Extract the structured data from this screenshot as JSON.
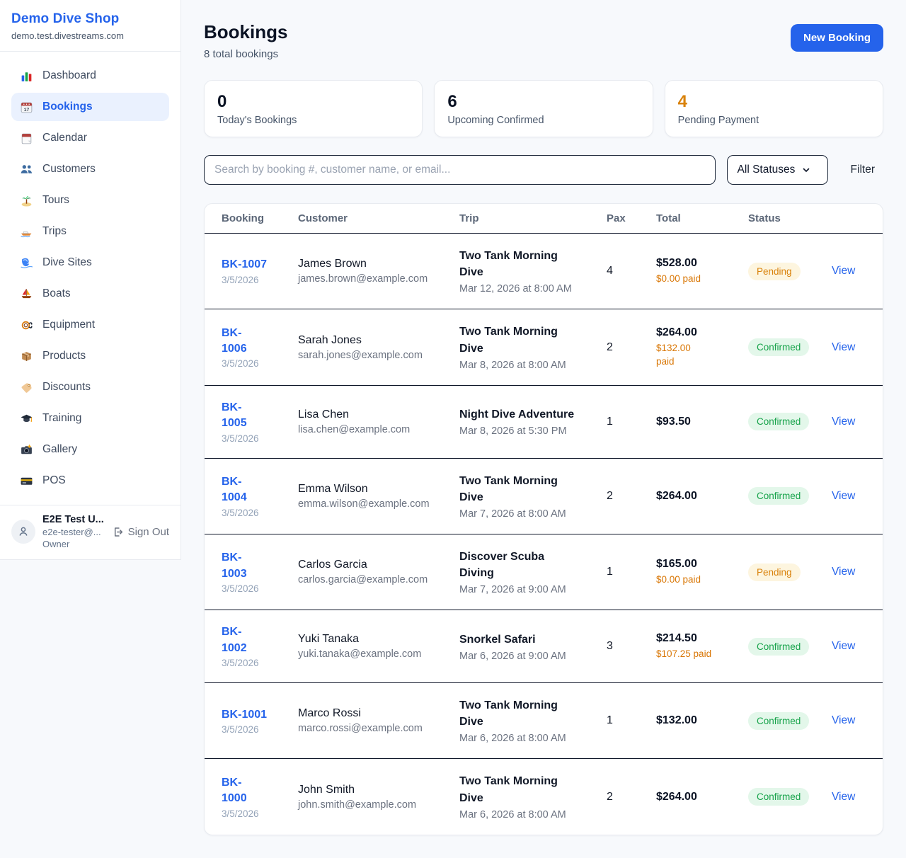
{
  "brand": {
    "name": "Demo Dive Shop",
    "domain": "demo.test.divestreams.com"
  },
  "sidebar": {
    "items": [
      {
        "label": "Dashboard",
        "icon": "bar-chart-icon",
        "active": false
      },
      {
        "label": "Bookings",
        "icon": "calendar-date-icon",
        "active": true
      },
      {
        "label": "Calendar",
        "icon": "calendar-icon",
        "active": false
      },
      {
        "label": "Customers",
        "icon": "users-icon",
        "active": false
      },
      {
        "label": "Tours",
        "icon": "island-icon",
        "active": false
      },
      {
        "label": "Trips",
        "icon": "speedboat-icon",
        "active": false
      },
      {
        "label": "Dive Sites",
        "icon": "wave-icon",
        "active": false
      },
      {
        "label": "Boats",
        "icon": "sailboat-icon",
        "active": false
      },
      {
        "label": "Equipment",
        "icon": "dive-mask-icon",
        "active": false
      },
      {
        "label": "Products",
        "icon": "package-icon",
        "active": false
      },
      {
        "label": "Discounts",
        "icon": "tag-icon",
        "active": false
      },
      {
        "label": "Training",
        "icon": "graduation-cap-icon",
        "active": false
      },
      {
        "label": "Gallery",
        "icon": "camera-icon",
        "active": false
      },
      {
        "label": "POS",
        "icon": "credit-card-icon",
        "active": false
      }
    ]
  },
  "user": {
    "name": "E2E Test U...",
    "email": "e2e-tester@...",
    "role": "Owner",
    "signout_label": "Sign Out"
  },
  "header": {
    "title": "Bookings",
    "subtitle": "8 total bookings",
    "new_booking_label": "New Booking"
  },
  "stats": [
    {
      "value": "0",
      "label": "Today's Bookings",
      "accent": null
    },
    {
      "value": "6",
      "label": "Upcoming Confirmed",
      "accent": null
    },
    {
      "value": "4",
      "label": "Pending Payment",
      "accent": "orange"
    }
  ],
  "filters": {
    "search_placeholder": "Search by booking #, customer name, or email...",
    "status_selected": "All Statuses",
    "filter_label": "Filter"
  },
  "table": {
    "columns": [
      "Booking",
      "Customer",
      "Trip",
      "Pax",
      "Total",
      "Status"
    ],
    "view_label": "View",
    "rows": [
      {
        "id": "BK-1007",
        "date": "3/5/2026",
        "customer": "James Brown",
        "email": "james.brown@example.com",
        "trip": "Two Tank Morning\nDive",
        "trip_date": "Mar 12, 2026 at 8:00 AM",
        "pax": "4",
        "total": "$528.00",
        "paid": "$0.00 paid",
        "status": "Pending"
      },
      {
        "id": "BK-\n1006",
        "date": "3/5/2026",
        "customer": "Sarah Jones",
        "email": "sarah.jones@example.com",
        "trip": "Two Tank Morning\nDive",
        "trip_date": "Mar 8, 2026 at 8:00 AM",
        "pax": "2",
        "total": "$264.00",
        "paid": "$132.00\npaid",
        "status": "Confirmed"
      },
      {
        "id": "BK-\n1005",
        "date": "3/5/2026",
        "customer": "Lisa Chen",
        "email": "lisa.chen@example.com",
        "trip": "Night Dive Adventure",
        "trip_date": "Mar 8, 2026 at 5:30 PM",
        "pax": "1",
        "total": "$93.50",
        "paid": null,
        "status": "Confirmed"
      },
      {
        "id": "BK-\n1004",
        "date": "3/5/2026",
        "customer": "Emma Wilson",
        "email": "emma.wilson@example.com",
        "trip": "Two Tank Morning\nDive",
        "trip_date": "Mar 7, 2026 at 8:00 AM",
        "pax": "2",
        "total": "$264.00",
        "paid": null,
        "status": "Confirmed"
      },
      {
        "id": "BK-\n1003",
        "date": "3/5/2026",
        "customer": "Carlos Garcia",
        "email": "carlos.garcia@example.com",
        "trip": "Discover Scuba\nDiving",
        "trip_date": "Mar 7, 2026 at 9:00 AM",
        "pax": "1",
        "total": "$165.00",
        "paid": "$0.00 paid",
        "status": "Pending"
      },
      {
        "id": "BK-\n1002",
        "date": "3/5/2026",
        "customer": "Yuki Tanaka",
        "email": "yuki.tanaka@example.com",
        "trip": "Snorkel Safari",
        "trip_date": "Mar 6, 2026 at 9:00 AM",
        "pax": "3",
        "total": "$214.50",
        "paid": "$107.25 paid",
        "status": "Confirmed"
      },
      {
        "id": "BK-1001",
        "date": "3/5/2026",
        "customer": "Marco Rossi",
        "email": "marco.rossi@example.com",
        "trip": "Two Tank Morning\nDive",
        "trip_date": "Mar 6, 2026 at 8:00 AM",
        "pax": "1",
        "total": "$132.00",
        "paid": null,
        "status": "Confirmed"
      },
      {
        "id": "BK-\n1000",
        "date": "3/5/2026",
        "customer": "John Smith",
        "email": "john.smith@example.com",
        "trip": "Two Tank Morning\nDive",
        "trip_date": "Mar 6, 2026 at 8:00 AM",
        "pax": "2",
        "total": "$264.00",
        "paid": null,
        "status": "Confirmed"
      }
    ]
  },
  "colors": {
    "accent_blue": "#2563eb",
    "pending_orange": "#d97706",
    "confirmed_green": "#16a34a"
  }
}
